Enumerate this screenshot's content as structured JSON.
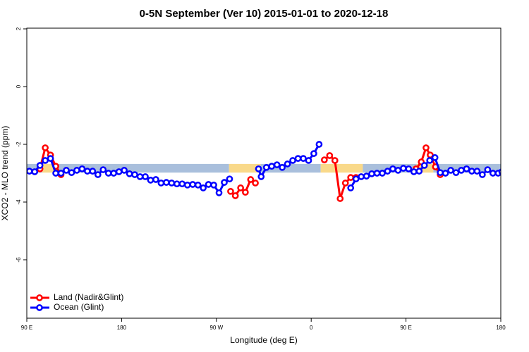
{
  "chart_data": {
    "type": "line",
    "title": "0-5N September (Ver 10)   2015-01-01 to 2020-12-18",
    "x_label": "Longitude (deg E)",
    "y_label": "XCO2 - MLO trend (ppm)",
    "xlim": [
      90,
      540
    ],
    "ylim": [
      -8,
      2
    ],
    "xticks": [
      {
        "value": 90,
        "label": "90 E"
      },
      180,
      {
        "value": 270,
        "label": "90 W"
      },
      {
        "value": 360,
        "label": "0"
      },
      {
        "value": 450,
        "label": "90 E"
      },
      {
        "value": 540,
        "label": "180"
      }
    ],
    "yticks": [
      2,
      0,
      -2,
      -4,
      -6
    ],
    "legend": "bottom-left",
    "band": {
      "ylim": [
        -2.98,
        -2.68
      ],
      "segments": [
        {
          "x": [
            90,
            104.7
          ],
          "color": "#a9bfdc"
        },
        {
          "x": [
            104.7,
            118
          ],
          "color": "#f9d98a"
        },
        {
          "x": [
            118,
            282
          ],
          "color": "#a9bfdc"
        },
        {
          "x": [
            282,
            312
          ],
          "color": "#f9d98a"
        },
        {
          "x": [
            312,
            369
          ],
          "color": "#a9bfdc"
        },
        {
          "x": [
            369,
            409
          ],
          "color": "#f9d98a"
        },
        {
          "x": [
            409,
            460
          ],
          "color": "#a9bfdc"
        },
        {
          "x": [
            460,
            476
          ],
          "color": "#f9d98a"
        },
        {
          "x": [
            476,
            540
          ],
          "color": "#a9bfdc"
        }
      ]
    },
    "series": [
      {
        "name": "Land (Nadir&Glint)",
        "color": "#ff0000",
        "x": [
          102.5,
          107.5,
          112.5,
          117.5,
          122.5,
          null,
          283.5,
          288,
          293,
          297.5,
          302.5,
          307,
          null,
          372.5,
          377.5,
          382.5,
          387.5,
          392.5,
          397.5,
          402.5,
          null,
          459.5,
          464.5,
          469,
          473,
          478,
          482.5
        ],
        "values": [
          -2.85,
          -2.12,
          -2.37,
          -2.76,
          -3.05,
          null,
          -3.63,
          -3.78,
          -3.51,
          -3.66,
          -3.22,
          -3.34,
          null,
          -2.54,
          -2.39,
          -2.56,
          -3.88,
          -3.34,
          -3.15,
          -3.15,
          null,
          -2.85,
          -2.61,
          -2.12,
          -2.37,
          -2.78,
          -3.05
        ]
      },
      {
        "name": "Ocean (Glint)",
        "color": "#0000ff",
        "x": [
          92.5,
          97.5,
          102.5,
          107.5,
          112.5,
          117.5,
          122.5,
          127.5,
          132.5,
          137.5,
          142.5,
          147.5,
          152.5,
          157.5,
          162.5,
          167.5,
          172.5,
          177.5,
          182.5,
          187.5,
          192.5,
          197.5,
          202.5,
          207.5,
          212.5,
          217.5,
          222.5,
          227.5,
          232.5,
          237.5,
          242.5,
          247.5,
          252.5,
          257.5,
          262.5,
          267.5,
          272.5,
          277.5,
          282.5,
          null,
          310,
          312.5,
          317.5,
          322.5,
          327.5,
          332.5,
          337.5,
          342.5,
          347.5,
          352.5,
          357.5,
          362.5,
          367.5,
          null,
          397.5,
          402.5,
          407.5,
          412.5,
          417.5,
          422.5,
          427.5,
          432.5,
          437.5,
          442.5,
          447.5,
          452.5,
          457.5,
          462.5,
          467.5,
          472.5,
          477.5,
          482.5,
          487.5,
          492.5,
          497.5,
          502.5,
          507.5,
          512.5,
          517.5,
          522.5,
          527.5,
          532.5,
          537.5,
          541
        ],
        "values": [
          -2.93,
          -2.95,
          -2.73,
          -2.56,
          -2.49,
          -3.0,
          -3.0,
          -2.9,
          -2.98,
          -2.9,
          -2.85,
          -2.93,
          -2.93,
          -3.05,
          -2.88,
          -3.0,
          -3.0,
          -2.95,
          -2.9,
          -3.02,
          -3.05,
          -3.12,
          -3.12,
          -3.24,
          -3.22,
          -3.34,
          -3.32,
          -3.34,
          -3.37,
          -3.37,
          -3.41,
          -3.39,
          -3.41,
          -3.51,
          -3.39,
          -3.41,
          -3.68,
          -3.32,
          -3.2,
          null,
          -2.85,
          -3.12,
          -2.8,
          -2.76,
          -2.71,
          -2.8,
          -2.68,
          -2.56,
          -2.49,
          -2.49,
          -2.56,
          -2.32,
          -2.0,
          null,
          -3.51,
          -3.2,
          -3.12,
          -3.1,
          -3.02,
          -3.0,
          -3.0,
          -2.93,
          -2.85,
          -2.9,
          -2.83,
          -2.85,
          -2.95,
          -2.93,
          -2.73,
          -2.56,
          -2.46,
          -2.98,
          -3.0,
          -2.9,
          -2.98,
          -2.9,
          -2.85,
          -2.93,
          -2.93,
          -3.05,
          -2.88,
          -3.0,
          -3.0,
          -2.95
        ]
      }
    ]
  }
}
